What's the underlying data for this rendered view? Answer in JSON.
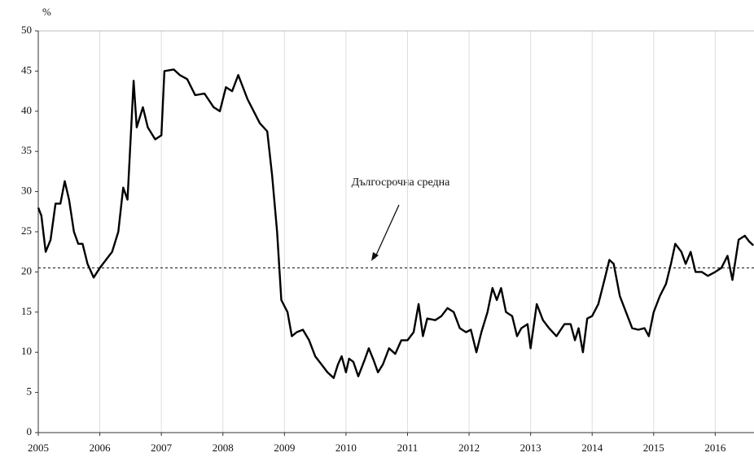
{
  "chart_data": {
    "type": "line",
    "y_label": "%",
    "x": [
      2005.0,
      2005.05,
      2005.12,
      2005.2,
      2005.28,
      2005.36,
      2005.43,
      2005.5,
      2005.58,
      2005.65,
      2005.72,
      2005.8,
      2005.9,
      2006.0,
      2006.1,
      2006.2,
      2006.3,
      2006.38,
      2006.45,
      2006.55,
      2006.6,
      2006.7,
      2006.78,
      2006.9,
      2007.0,
      2007.05,
      2007.2,
      2007.3,
      2007.42,
      2007.55,
      2007.7,
      2007.85,
      2007.95,
      2008.05,
      2008.15,
      2008.25,
      2008.4,
      2008.6,
      2008.72,
      2008.8,
      2008.88,
      2008.95,
      2009.05,
      2009.12,
      2009.2,
      2009.3,
      2009.4,
      2009.5,
      2009.6,
      2009.7,
      2009.8,
      2009.87,
      2009.93,
      2010.0,
      2010.05,
      2010.12,
      2010.2,
      2010.3,
      2010.37,
      2010.45,
      2010.52,
      2010.6,
      2010.7,
      2010.8,
      2010.9,
      2011.0,
      2011.1,
      2011.18,
      2011.25,
      2011.32,
      2011.45,
      2011.55,
      2011.65,
      2011.75,
      2011.85,
      2011.95,
      2012.03,
      2012.12,
      2012.2,
      2012.3,
      2012.38,
      2012.45,
      2012.52,
      2012.6,
      2012.7,
      2012.78,
      2012.85,
      2012.95,
      2013.0,
      2013.1,
      2013.2,
      2013.3,
      2013.42,
      2013.55,
      2013.65,
      2013.72,
      2013.78,
      2013.85,
      2013.92,
      2014.0,
      2014.1,
      2014.2,
      2014.28,
      2014.35,
      2014.45,
      2014.55,
      2014.65,
      2014.75,
      2014.85,
      2014.92,
      2015.0,
      2015.1,
      2015.2,
      2015.28,
      2015.35,
      2015.45,
      2015.52,
      2015.6,
      2015.68,
      2015.78,
      2015.88,
      2016.0,
      2016.1,
      2016.2,
      2016.28,
      2016.38,
      2016.48,
      2016.55,
      2016.62
    ],
    "values": [
      28,
      27,
      22.5,
      24,
      28.5,
      28.5,
      31.3,
      29,
      25,
      23.5,
      23.5,
      21,
      19.3,
      20.5,
      21.5,
      22.5,
      25,
      30.5,
      29,
      43.8,
      38,
      40.5,
      38,
      36.5,
      37,
      45,
      45.2,
      44.5,
      44,
      42,
      42.2,
      40.5,
      40,
      43,
      42.5,
      44.5,
      41.5,
      38.5,
      37.5,
      32,
      25,
      16.5,
      15,
      12,
      12.5,
      12.8,
      11.5,
      9.5,
      8.5,
      7.5,
      6.8,
      8.5,
      9.5,
      7.5,
      9.2,
      8.8,
      7,
      9,
      10.5,
      9,
      7.5,
      8.5,
      10.5,
      9.8,
      11.5,
      11.5,
      12.5,
      16,
      12,
      14.2,
      14,
      14.5,
      15.5,
      15,
      13,
      12.5,
      12.8,
      10,
      12.5,
      15,
      18,
      16.5,
      18,
      15,
      14.5,
      12,
      13,
      13.5,
      10.5,
      16,
      14,
      13,
      12,
      13.5,
      13.5,
      11.5,
      13,
      10,
      14.2,
      14.5,
      16,
      19,
      21.5,
      21,
      17,
      15,
      13,
      12.8,
      13,
      12,
      15,
      17,
      18.5,
      21,
      23.5,
      22.5,
      21,
      22.5,
      20,
      20,
      19.5,
      20,
      20.5,
      22,
      19,
      24,
      24.5,
      23.8,
      23.3
    ],
    "color": "#000000",
    "reference_line": {
      "value": 20.5,
      "label": "Дългосрочна средна"
    },
    "xlim": [
      2005,
      2016.63
    ],
    "xticks": [
      2005,
      2006,
      2007,
      2008,
      2009,
      2010,
      2011,
      2012,
      2013,
      2014,
      2015,
      2016
    ],
    "ylim": [
      0,
      50
    ],
    "yticks": [
      0,
      5,
      10,
      15,
      20,
      25,
      30,
      35,
      40,
      45,
      50
    ],
    "grid": true
  }
}
